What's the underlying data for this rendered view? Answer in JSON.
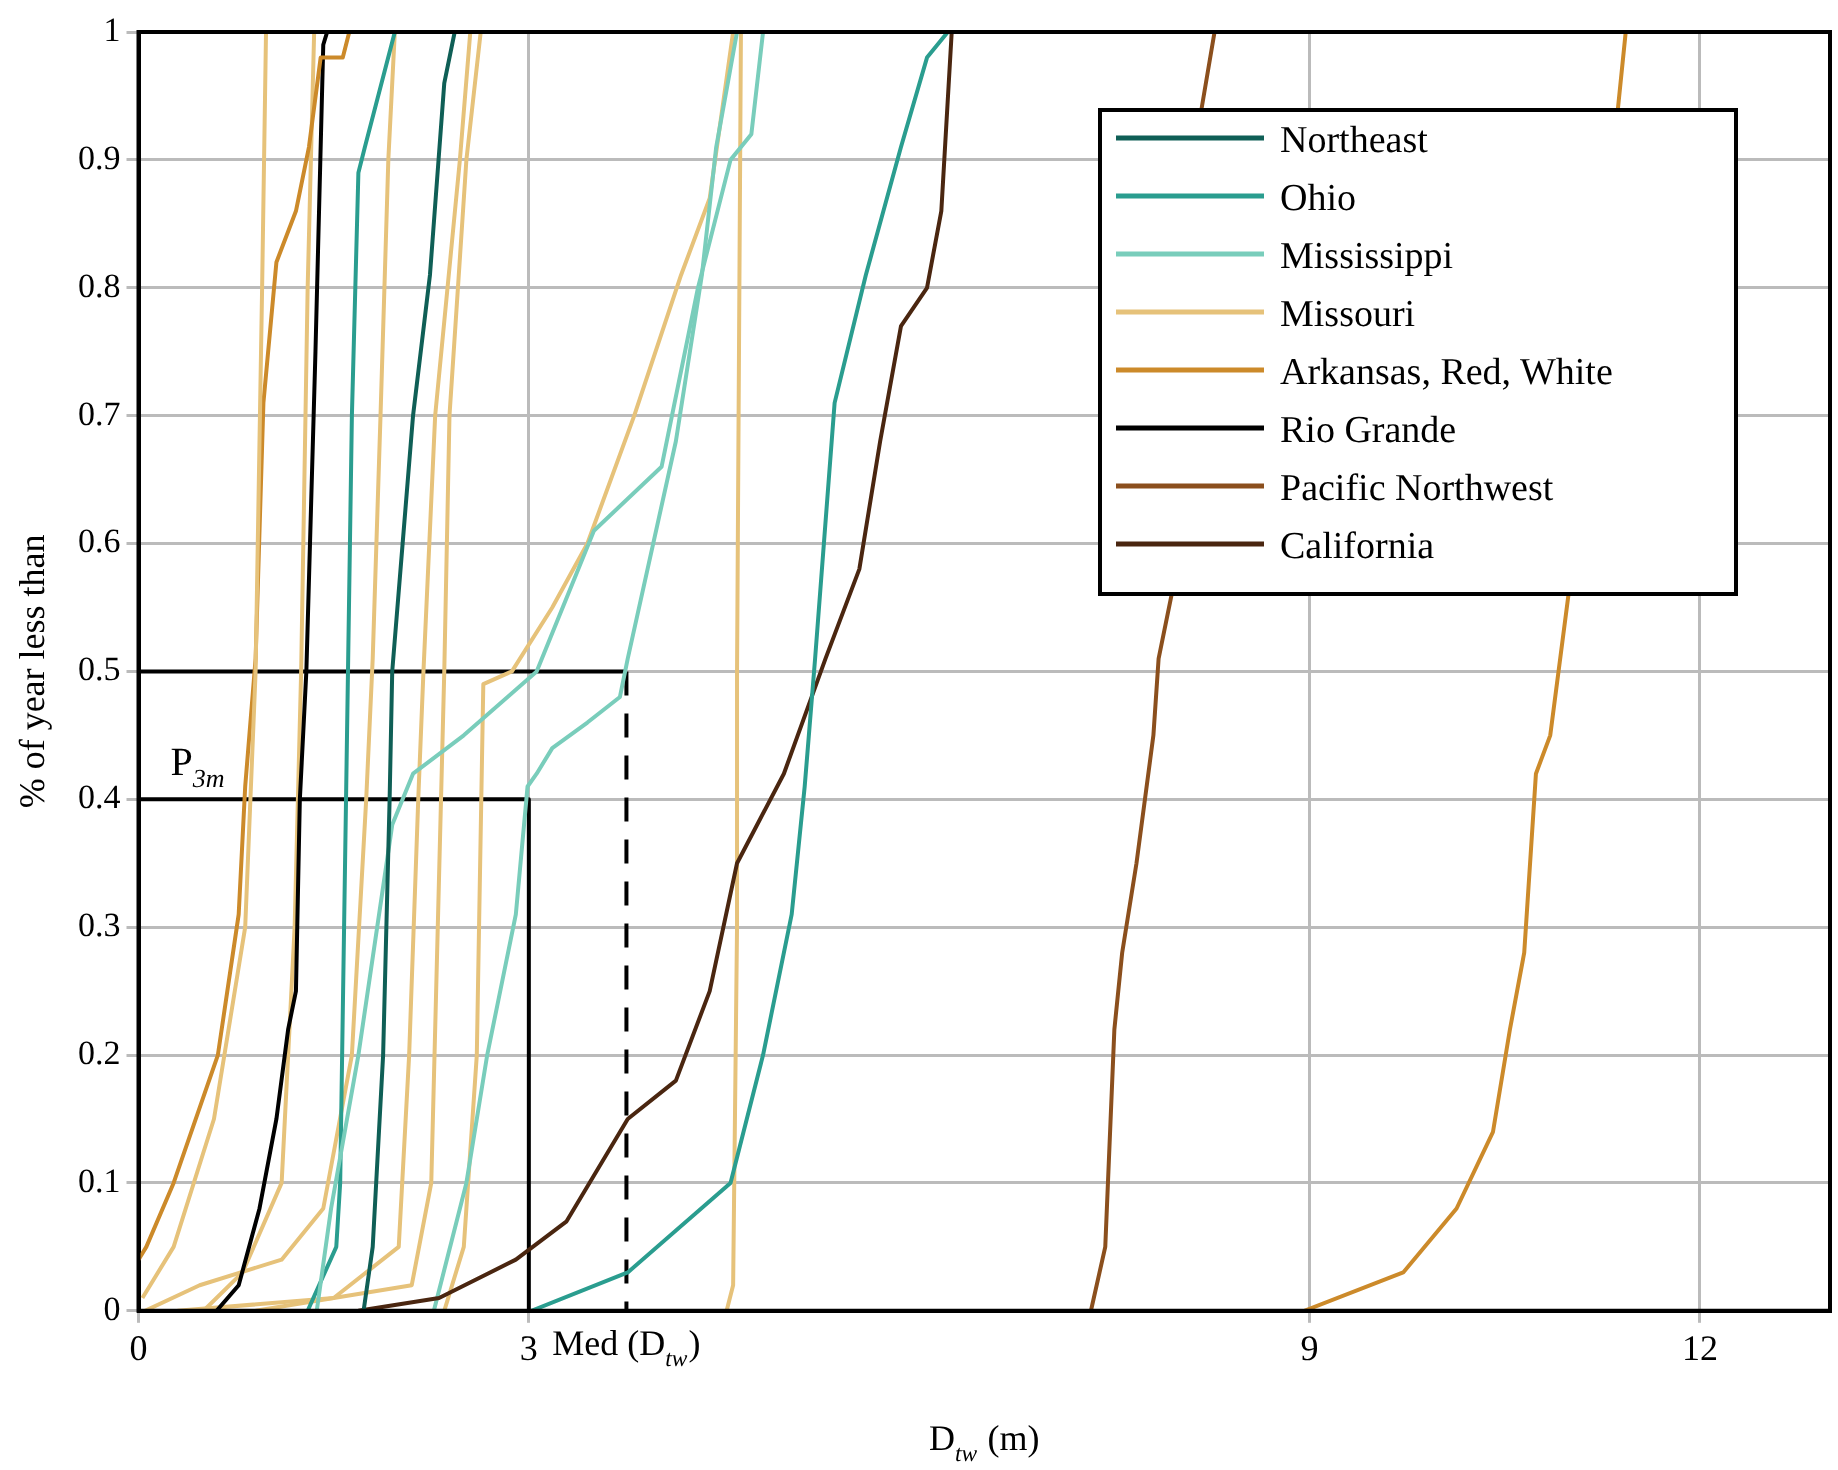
{
  "chart_data": {
    "type": "line",
    "xlabel": "D$_{tw}$ (m)",
    "ylabel": "% of year less than",
    "xlim": [
      0,
      13
    ],
    "xticks": [
      0,
      3,
      9,
      12
    ],
    "ylim": [
      0,
      1
    ],
    "yticks": [
      0,
      0.1,
      0.2,
      0.3,
      0.4,
      0.5,
      0.6,
      0.7,
      0.8,
      0.9,
      1
    ],
    "grid": true,
    "legend": "top right",
    "marker": "none",
    "line_style": "solid",
    "annotations": [
      {
        "text": "Med (D$_{tw}$)",
        "x": 3.75,
        "y": 0
      },
      {
        "text": "P$_{3m}$",
        "x": 0,
        "y": 0.4
      }
    ],
    "series": [
      {
        "name": "Northeast",
        "color": "#0f5f56",
        "x": [
          1.73,
          1.8,
          1.88,
          1.93,
          1.95,
          2.03,
          2.11,
          2.24,
          2.35,
          2.43
        ],
        "values": [
          0,
          0.05,
          0.2,
          0.4,
          0.5,
          0.6,
          0.7,
          0.81,
          0.96,
          1
        ]
      },
      {
        "name": "Ohio",
        "color": "#2a9d8f",
        "x": [
          3.02,
          3.76,
          4.55,
          4.8,
          5.02,
          5.12,
          5.2,
          5.35,
          5.59,
          5.86,
          6.06,
          6.22
        ],
        "values": [
          0,
          0.03,
          0.1,
          0.2,
          0.31,
          0.41,
          0.51,
          0.71,
          0.81,
          0.91,
          0.98,
          1
        ]
      },
      {
        "name": "Mississippi",
        "color": "#79cdbb",
        "x": [
          1.37,
          1.48,
          1.69,
          1.95,
          2.11,
          2.5,
          3.06,
          3.5,
          4.02,
          4.3,
          4.55,
          4.71,
          4.8
        ],
        "values": [
          0,
          0.08,
          0.2,
          0.38,
          0.42,
          0.45,
          0.5,
          0.61,
          0.66,
          0.8,
          0.9,
          0.92,
          1
        ]
      },
      {
        "name": "Missouri",
        "color": "#e6c27a",
        "x": [
          0.03,
          0.27,
          0.58,
          0.82,
          0.9,
          0.95,
          0.98
        ],
        "values": [
          0.01,
          0.05,
          0.15,
          0.3,
          0.5,
          0.8,
          1
        ]
      },
      {
        "name": "Arkansas, Red, White",
        "color": "#cc8a2a",
        "x": [
          0,
          0.06,
          0.27,
          0.61,
          0.77,
          0.82,
          0.9,
          0.96,
          1.06,
          1.21,
          1.31,
          1.4,
          1.57,
          1.62
        ],
        "values": [
          0.04,
          0.05,
          0.1,
          0.2,
          0.31,
          0.41,
          0.51,
          0.71,
          0.82,
          0.86,
          0.91,
          0.98,
          0.98,
          1
        ]
      },
      {
        "name": "Rio Grande",
        "color": "#000000",
        "x": [
          0.6,
          0.77,
          0.93,
          1.06,
          1.15,
          1.21,
          1.24,
          1.29,
          1.36,
          1.42,
          1.45
        ],
        "values": [
          0,
          0.02,
          0.08,
          0.15,
          0.22,
          0.25,
          0.4,
          0.5,
          0.75,
          0.99,
          1
        ]
      },
      {
        "name": "Pacific Northwest",
        "color": "#8b4f1d",
        "x": [
          7.32,
          7.43,
          7.5,
          7.56,
          7.67,
          7.8,
          7.84,
          7.94,
          8.05,
          8.17,
          8.27
        ],
        "values": [
          0,
          0.05,
          0.22,
          0.28,
          0.35,
          0.45,
          0.51,
          0.56,
          null,
          0.94,
          1
        ]
      },
      {
        "name": "California",
        "color": "#4a2610",
        "x": [
          1.69,
          2.31,
          2.9,
          3.29,
          3.76,
          4.13,
          4.39,
          4.6,
          4.96,
          5.28,
          5.54,
          5.7,
          5.86,
          6.06,
          6.17,
          6.25
        ],
        "values": [
          0,
          0.01,
          0.04,
          0.07,
          0.15,
          0.18,
          0.25,
          0.35,
          0.42,
          0.51,
          0.58,
          0.68,
          0.77,
          0.8,
          0.86,
          1
        ]
      },
      {
        "color": "#2a9d8f",
        "x": [
          1.3,
          1.52,
          1.55,
          1.58,
          1.61,
          1.64,
          1.69,
          1.74,
          1.97
        ],
        "values": [
          0,
          0.05,
          0.1,
          0.3,
          0.5,
          0.7,
          0.89,
          0.91,
          1
        ]
      },
      {
        "color": "#79cdbb",
        "x": [
          2.27,
          2.52,
          2.68,
          2.9,
          2.99,
          3.06,
          3.18,
          3.45,
          3.7,
          3.76,
          4.13,
          4.33,
          4.44,
          4.6
        ],
        "values": [
          0,
          0.1,
          0.2,
          0.31,
          0.41,
          0.42,
          0.44,
          0.46,
          0.48,
          0.51,
          0.68,
          0.81,
          0.91,
          1
        ]
      },
      {
        "color": "#e6c27a",
        "x": [
          2.35,
          2.5,
          2.6,
          2.65,
          2.87,
          3.18,
          3.45,
          3.81,
          4.17,
          4.39,
          4.57
        ],
        "values": [
          0,
          0.05,
          0.2,
          0.49,
          0.5,
          0.55,
          0.6,
          0.7,
          0.81,
          0.87,
          1
        ]
      },
      {
        "color": "#e6c27a",
        "x": [
          4.52,
          4.57,
          4.6,
          4.6,
          4.63
        ],
        "values": [
          0,
          0.02,
          0.3,
          0.5,
          1
        ]
      },
      {
        "color": "#e6c27a",
        "x": [
          0.05,
          0.47,
          1.1,
          1.42,
          1.64,
          1.75,
          1.8,
          1.86,
          1.92,
          1.97
        ],
        "values": [
          0,
          0.02,
          0.04,
          0.08,
          0.2,
          0.4,
          0.51,
          0.7,
          0.9,
          1
        ]
      },
      {
        "color": "#e6c27a",
        "x": [
          0.3,
          1.5,
          2,
          2.08,
          2.15,
          2.19,
          2.28,
          2.47,
          2.55
        ],
        "values": [
          0,
          0.01,
          0.05,
          0.2,
          0.4,
          0.5,
          0.7,
          0.9,
          1
        ]
      },
      {
        "color": "#e6c27a",
        "x": [
          0.9,
          2.1,
          2.25,
          2.3,
          2.35,
          2.39,
          2.52,
          2.63
        ],
        "values": [
          0,
          0.02,
          0.1,
          0.3,
          0.5,
          0.7,
          0.9,
          1
        ]
      },
      {
        "color": "#e6c27a",
        "x": [
          0.5,
          0.8,
          1.1,
          1.2,
          1.25,
          1.3,
          1.35
        ],
        "values": [
          0,
          0.03,
          0.1,
          0.3,
          0.5,
          0.8,
          1
        ]
      },
      {
        "color": "#cc8a2a",
        "x": [
          8.96,
          9.72,
          10.13,
          10.41,
          10.54,
          10.65,
          10.74,
          10.85,
          10.99,
          11.2,
          11.37,
          11.43
        ],
        "values": [
          0,
          0.03,
          0.08,
          0.14,
          0.22,
          0.28,
          0.42,
          0.45,
          0.56,
          null,
          0.94,
          1
        ]
      },
      {
        "color": "#000000",
        "x": [
          0,
          3.75
        ],
        "values": [
          0.5,
          0.5
        ]
      },
      {
        "color": "#000000",
        "x": [
          3.75,
          3.75
        ],
        "values": [
          0.5,
          0
        ],
        "line_style": "dashed"
      },
      {
        "color": "#000000",
        "x": [
          0,
          3,
          3
        ],
        "values": [
          0.4,
          0.4,
          0
        ]
      }
    ]
  }
}
